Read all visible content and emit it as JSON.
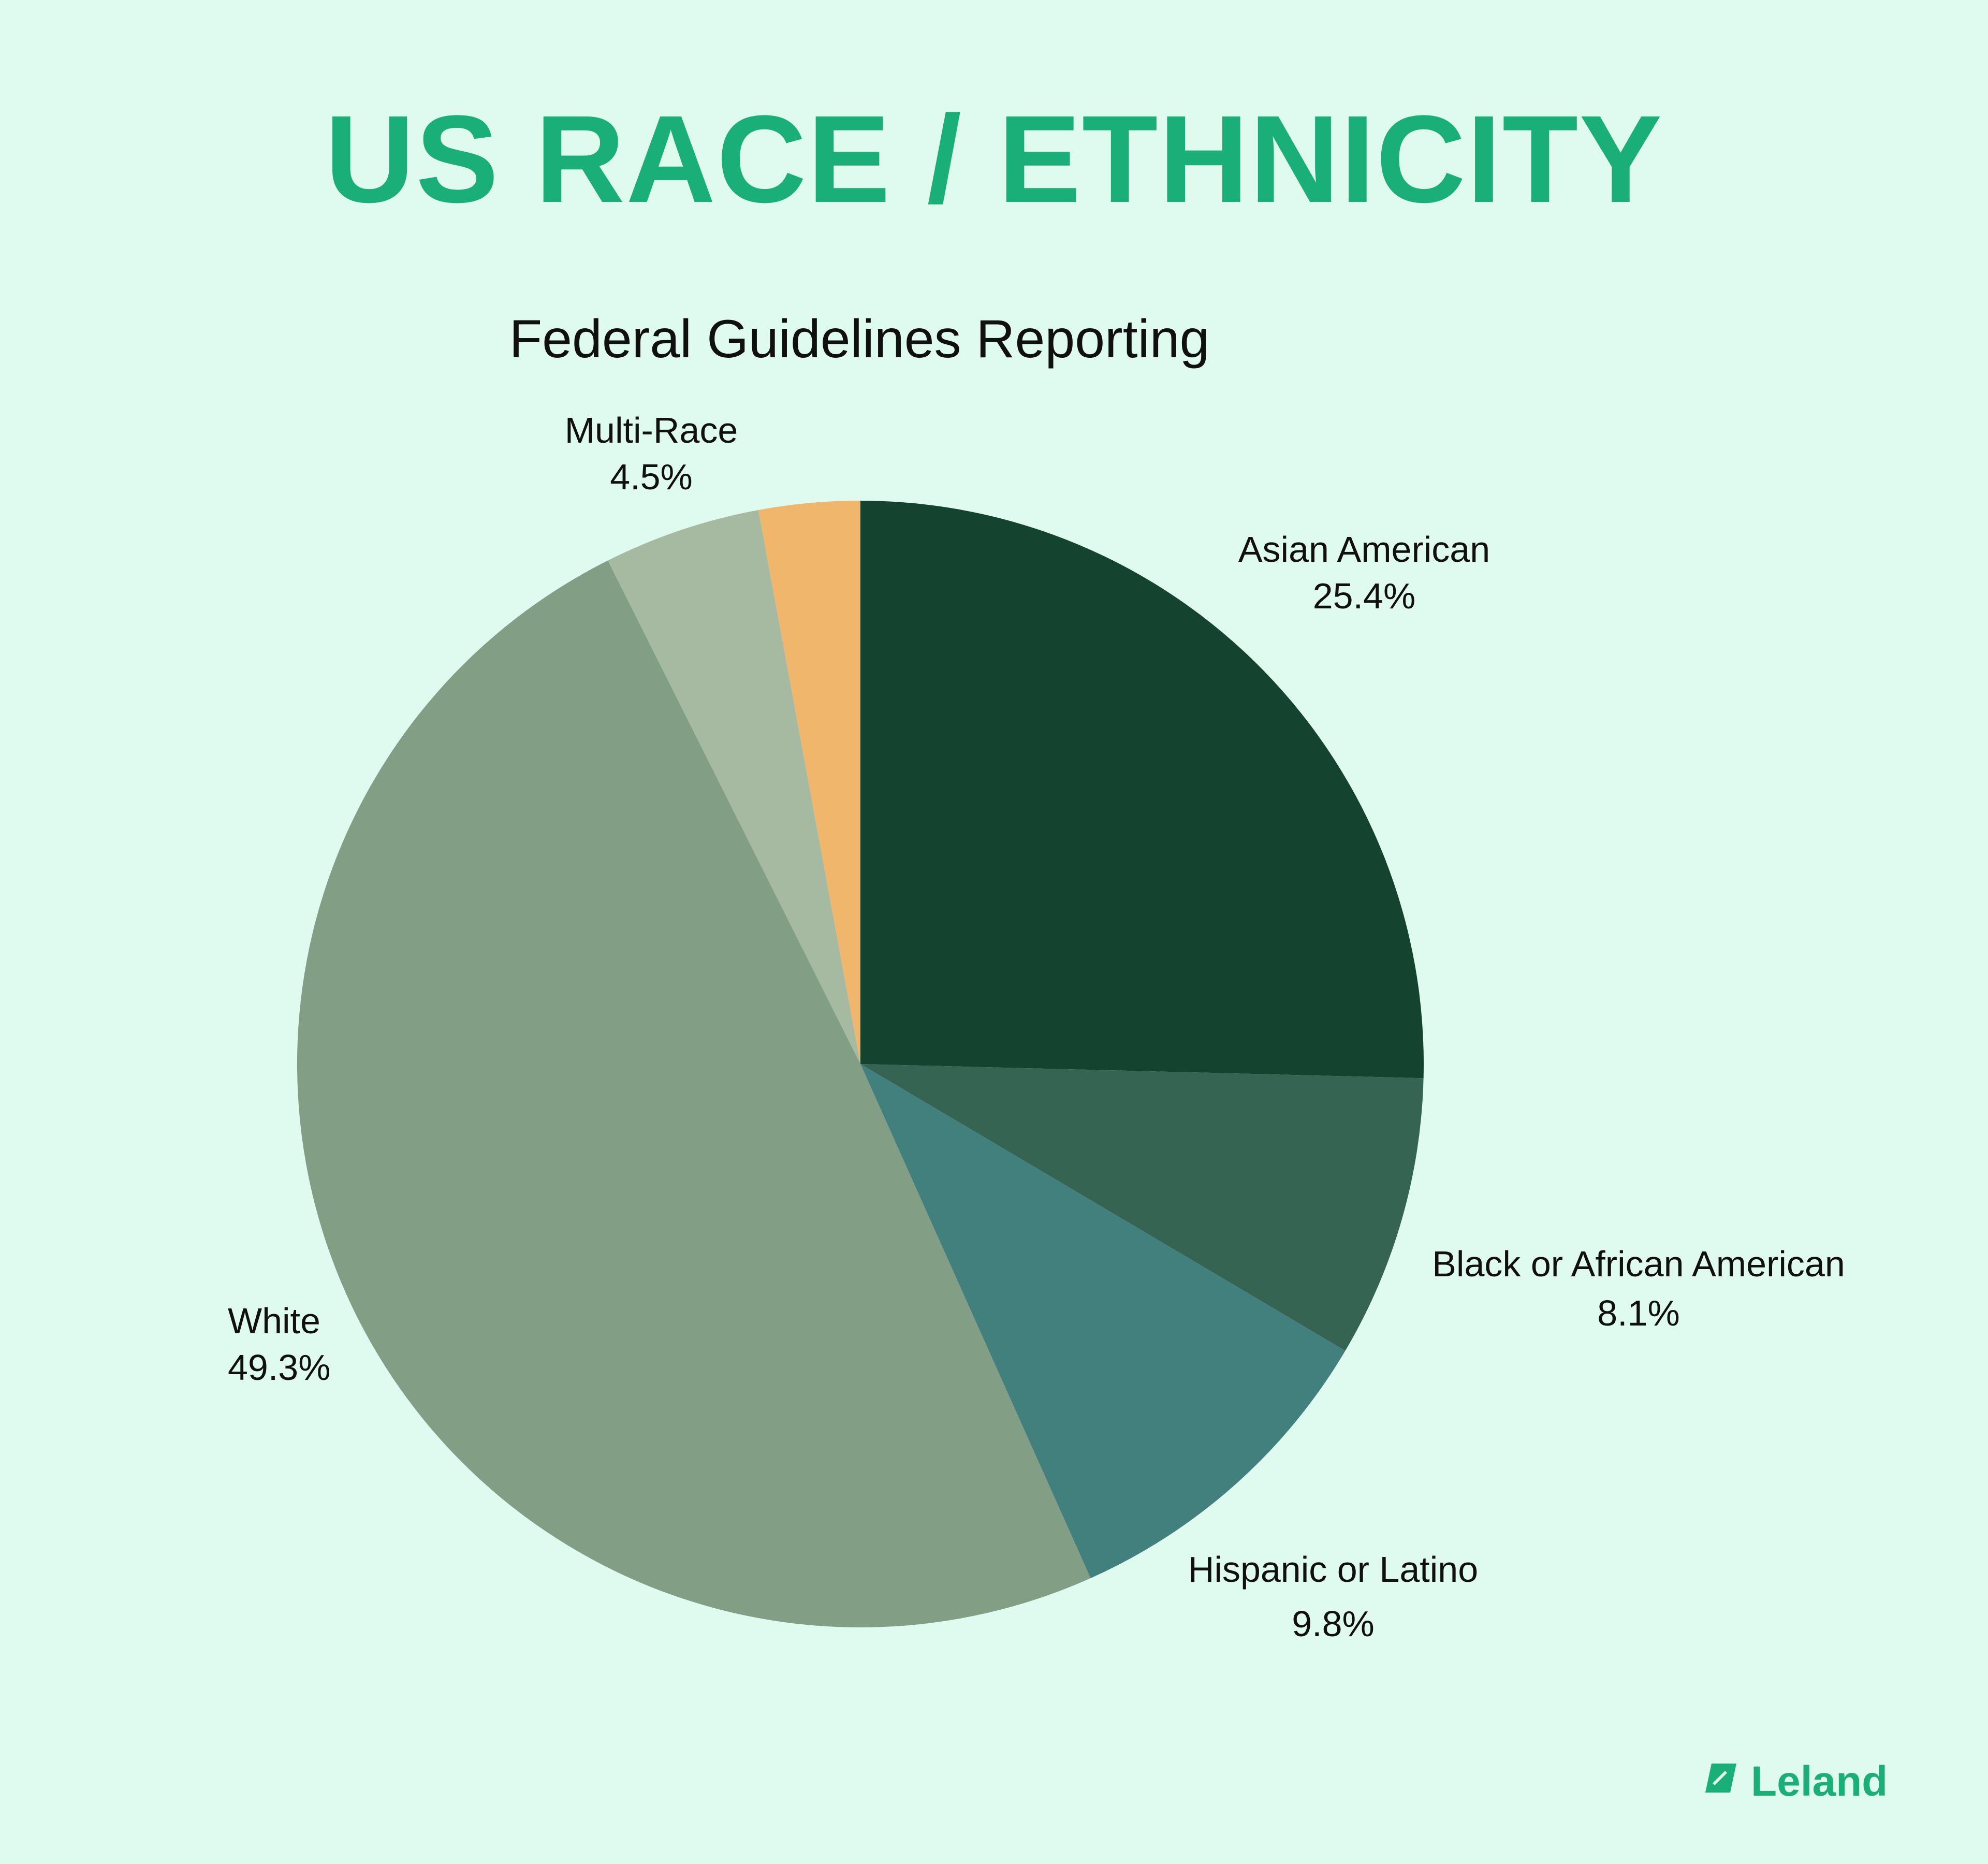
{
  "chart_data": {
    "type": "pie",
    "title": "US RACE / ETHNICITY",
    "subtitle": "Federal Guidelines Reporting",
    "slices": [
      {
        "label": "Asian American",
        "value_label": "25.4%",
        "value": 25.4,
        "color": "#14432f"
      },
      {
        "label": "Black or African American",
        "value_label": "8.1%",
        "value": 8.1,
        "color": "#366452"
      },
      {
        "label": "Hispanic or Latino",
        "value_label": "9.8%",
        "value": 9.8,
        "color": "#41807c"
      },
      {
        "label": "White",
        "value_label": "49.3%",
        "value": 49.3,
        "color": "#829f86"
      },
      {
        "label": "Multi-Race",
        "value_label": "4.5%",
        "value": 4.5,
        "color": "#a6baa1"
      },
      {
        "label": "",
        "value_label": "",
        "value": 2.9,
        "color": "#efb66c"
      }
    ]
  },
  "brand": {
    "name": "Leland",
    "color": "#1aaf78"
  }
}
